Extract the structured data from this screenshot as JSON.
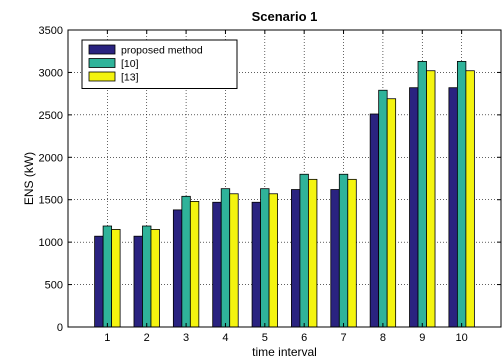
{
  "chart_data": {
    "type": "bar",
    "title": "Scenario 1",
    "xlabel": "time interval",
    "ylabel": "ENS (kW)",
    "categories": [
      "1",
      "2",
      "3",
      "4",
      "5",
      "6",
      "7",
      "8",
      "9",
      "10"
    ],
    "ylim": [
      0,
      3500
    ],
    "xlim": [
      0,
      11
    ],
    "yticks": [
      "0",
      "500",
      "1000",
      "1500",
      "2000",
      "2500",
      "3000",
      "3500"
    ],
    "grid": true,
    "legend": "top-left",
    "series": [
      {
        "name": "proposed method",
        "color": "#2a2380",
        "values": [
          1070,
          1070,
          1380,
          1470,
          1470,
          1620,
          1620,
          2510,
          2820,
          2820
        ]
      },
      {
        "name": "[10]",
        "color": "#2fb39a",
        "values": [
          1190,
          1190,
          1540,
          1630,
          1630,
          1800,
          1800,
          2790,
          3130,
          3130
        ]
      },
      {
        "name": "[13]",
        "color": "#f4f40f",
        "values": [
          1150,
          1150,
          1480,
          1570,
          1570,
          1740,
          1740,
          2690,
          3020,
          3020
        ]
      }
    ]
  }
}
